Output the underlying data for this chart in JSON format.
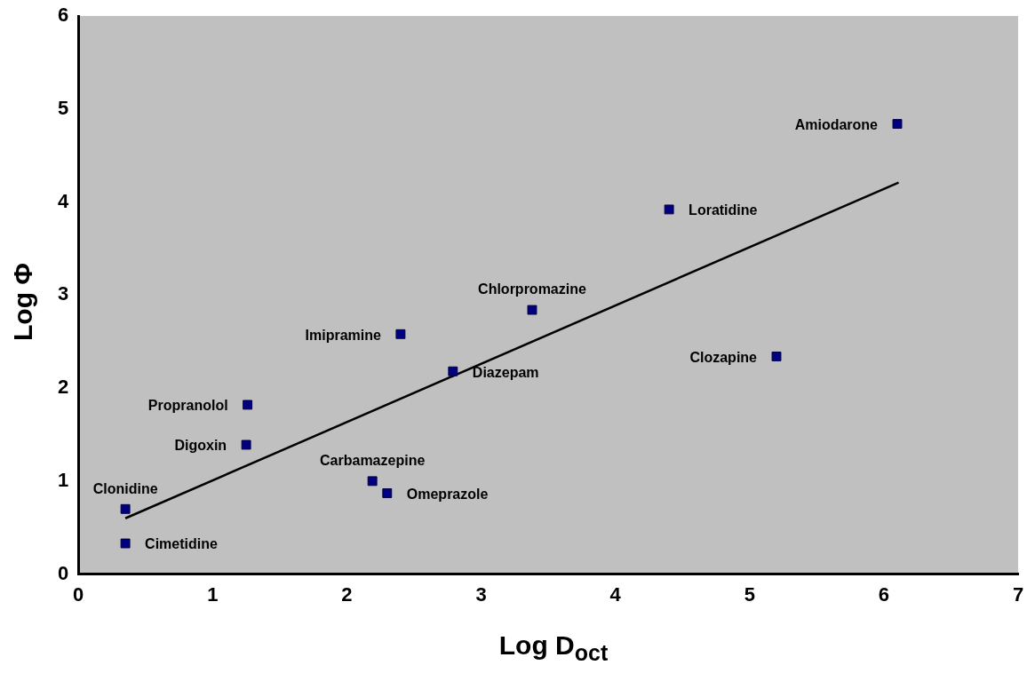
{
  "chart_data": {
    "type": "scatter",
    "xlabel": "Log D$_{oct}$",
    "ylabel": "Log Φ",
    "xlim": [
      0,
      7
    ],
    "xticks": [
      0,
      1,
      2,
      3,
      4,
      5,
      6,
      7
    ],
    "ylim": [
      0,
      6
    ],
    "yticks": [
      0,
      1,
      2,
      3,
      4,
      5,
      6
    ],
    "grid": false,
    "legend": false,
    "series": [
      {
        "color": "#000080",
        "marker": "square",
        "x": [
          0.35,
          0.35,
          1.25,
          1.26,
          2.19,
          2.3,
          2.4,
          2.79,
          3.38,
          4.4,
          5.2,
          6.1
        ],
        "values": [
          0.33,
          0.7,
          1.39,
          1.82,
          1.0,
          0.87,
          2.58,
          2.18,
          2.84,
          3.92,
          2.34,
          4.84
        ]
      },
      {
        "type": "line",
        "marker": "none",
        "color": "#000000",
        "x": [
          0.35,
          6.11
        ],
        "values": [
          0.6,
          4.21
        ]
      }
    ],
    "annotations": [
      {
        "text": "Cimetidine",
        "x": 0.35,
        "y": 0.33
      },
      {
        "text": "Clonidine",
        "x": 0.35,
        "y": 0.7
      },
      {
        "text": "Digoxin",
        "x": 1.25,
        "y": 1.39
      },
      {
        "text": "Propranolol",
        "x": 1.26,
        "y": 1.82
      },
      {
        "text": "Carbamazepine",
        "x": 2.19,
        "y": 1.0
      },
      {
        "text": "Omeprazole",
        "x": 2.3,
        "y": 0.87
      },
      {
        "text": "Imipramine",
        "x": 2.4,
        "y": 2.58
      },
      {
        "text": "Diazepam",
        "x": 2.79,
        "y": 2.18
      },
      {
        "text": "Chlorpromazine",
        "x": 3.38,
        "y": 2.84
      },
      {
        "text": "Loratidine",
        "x": 4.4,
        "y": 3.92
      },
      {
        "text": "Clozapine",
        "x": 5.2,
        "y": 2.34
      },
      {
        "text": "Amiodarone",
        "x": 6.1,
        "y": 4.84
      }
    ]
  }
}
